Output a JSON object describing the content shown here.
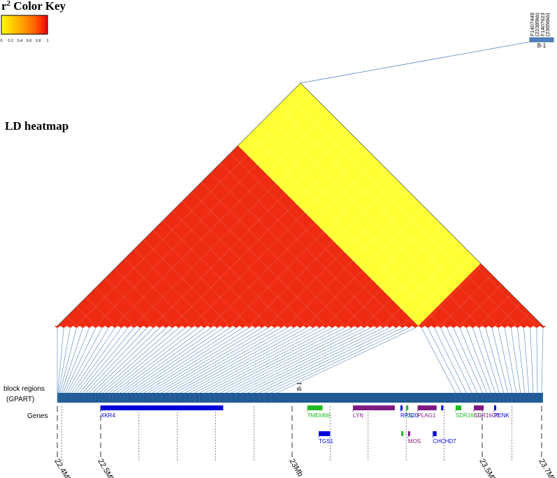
{
  "chart_data": {
    "type": "heatmap",
    "subtype": "linkage-disequilibrium triangle with gene track",
    "color_key": {
      "title_prefix": "r",
      "title_sup": "2",
      "title_suffix": " Color Key",
      "ticks": [
        "0",
        "0.2",
        "0.4",
        "0.6",
        "0.8",
        "1"
      ],
      "colors": [
        "#ffff00",
        "#ffc800",
        "#ff9600",
        "#ff5a00",
        "#f00000"
      ]
    },
    "heatmap_title": "LD heatmap",
    "n_markers": 77,
    "blocks": [
      {
        "from_marker": 1,
        "to_marker": 57,
        "r2": 0.92,
        "color": "#ee2a10"
      },
      {
        "from_marker": 58,
        "to_marker": 77,
        "r2": 0.9,
        "color": "#ee2a10"
      },
      {
        "between": [
          1,
          57
        ],
        "and": [
          58,
          77
        ],
        "r2": 0.05,
        "color": "#ffff33"
      }
    ],
    "block_track": {
      "label_line1": "block regions",
      "label_line2": "(GPART)",
      "block_label": "B-1",
      "color": "#1f5a94"
    },
    "genes_label": "Genes",
    "inset": {
      "markers": [
        "F1407449",
        "(22389kb)",
        "F1407623",
        "(23656kb)"
      ],
      "block_label": "B-1",
      "color": "#4f81bd"
    },
    "axis": {
      "ticks": [
        {
          "pos": 22.4,
          "label": "22.4Mb"
        },
        {
          "pos": 22.5,
          "label": "22.5Mb"
        },
        {
          "pos": 23.0,
          "label": "23Mb"
        },
        {
          "pos": 23.5,
          "label": "23.5Mb"
        },
        {
          "pos": 23.7,
          "label": "23.7Mb"
        }
      ],
      "minor_ticks": [
        22.41,
        22.6,
        22.7,
        22.8,
        22.9,
        23.1,
        23.2,
        23.3,
        23.4,
        23.6
      ],
      "range": [
        22.4,
        23.7
      ]
    },
    "genes": [
      {
        "name": "XKR4",
        "start": 22.5,
        "end": 22.82,
        "row": 0,
        "color": "#0000dd",
        "label_at": "start"
      },
      {
        "name": "TMEM68",
        "start": 23.04,
        "end": 23.08,
        "row": 0,
        "color": "#22bb22",
        "label_at": "start"
      },
      {
        "name": "LYN",
        "start": 23.16,
        "end": 23.27,
        "row": 0,
        "color": "#7f1a84",
        "label_at": "start"
      },
      {
        "name": "U1",
        "start": 23.3,
        "end": 23.305,
        "row": 0,
        "color": "#22bb22",
        "label_at": "start"
      },
      {
        "name": "RPS20",
        "start": 23.285,
        "end": 23.29,
        "row": 0,
        "color": "#0000dd",
        "label_at": "start",
        "label_row": 1
      },
      {
        "name": "PLAG1",
        "start": 23.33,
        "end": 23.38,
        "row": 0,
        "color": "#7f1a84",
        "label_at": "start"
      },
      {
        "name": "SDR16C5",
        "start": 23.43,
        "end": 23.445,
        "row": 0,
        "color": "#22bb22",
        "label_at": "start"
      },
      {
        "name": "SDR16C6",
        "start": 23.478,
        "end": 23.505,
        "row": 0,
        "color": "#7f1a84",
        "label_at": "start"
      },
      {
        "name": "PENK",
        "start": 23.54,
        "end": 23.546,
        "row": 0,
        "color": "#0000dd",
        "label_at": "start"
      },
      {
        "name": "",
        "start": 23.392,
        "end": 23.396,
        "row": 0,
        "color": "#0000dd",
        "label_at": "none"
      },
      {
        "name": "TGS1",
        "start": 23.07,
        "end": 23.1,
        "row": 1,
        "color": "#0000dd",
        "label_at": "start"
      },
      {
        "name": "",
        "start": 23.287,
        "end": 23.291,
        "row": 1,
        "color": "#22bb22",
        "label_at": "none"
      },
      {
        "name": "MOS",
        "start": 23.305,
        "end": 23.31,
        "row": 1,
        "color": "#7f1a84",
        "label_at": "start"
      },
      {
        "name": "CHCHD7",
        "start": 23.37,
        "end": 23.38,
        "row": 1,
        "color": "#0000dd",
        "label_at": "start"
      }
    ]
  }
}
